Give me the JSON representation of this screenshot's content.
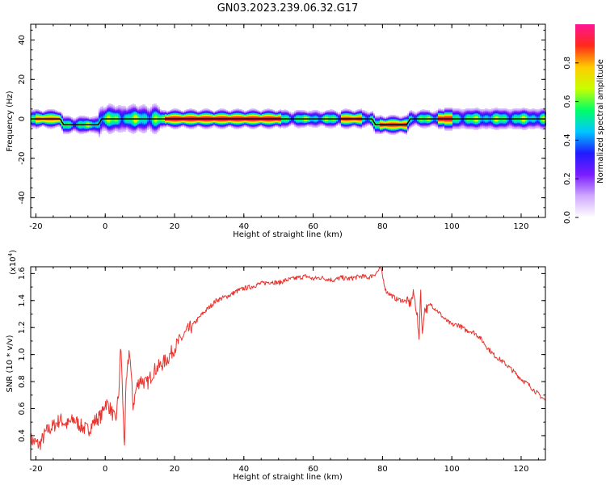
{
  "title": "GN03.2023.239.06.32.G17",
  "colors": {
    "snr_line": "#e8342f",
    "line_color": "#000000",
    "colormap": [
      "#ffffff",
      "#cfa8ff",
      "#7a1cff",
      "#1f1cff",
      "#00c8ff",
      "#00ff66",
      "#c8ff00",
      "#ffcc00",
      "#ff2a1a",
      "#ff1493"
    ]
  },
  "chart_data": [
    {
      "type": "heatmap",
      "xlabel": "Height of straight line (km)",
      "ylabel": "Frequency (Hz)",
      "xlim": [
        -21.5,
        127
      ],
      "ylim": [
        -50,
        48
      ],
      "xticks": [
        -20,
        0,
        20,
        40,
        60,
        80,
        100,
        120
      ],
      "yticks": [
        -40,
        -20,
        0,
        20,
        40
      ],
      "ridge": {
        "x": [
          -21.5,
          -13,
          -12,
          -2,
          -1,
          17,
          18,
          77,
          78,
          87,
          88,
          127
        ],
        "freq": [
          0,
          0,
          -3,
          -3,
          0,
          0,
          0,
          0,
          -3,
          -3,
          0,
          0
        ]
      },
      "colorbar": {
        "label": "Normalized spectral amplitude",
        "range": [
          0.0,
          1.0
        ],
        "ticks": [
          "0.0",
          "0.2",
          "0.4",
          "0.6",
          "0.8"
        ]
      }
    },
    {
      "type": "line",
      "xlabel": "Height of straight line (km)",
      "ylabel": "SNR (10 * v/v)",
      "scale_label": "(x10",
      "scale_exp": "4",
      "scale_close": ")",
      "xlim": [
        -21.5,
        127
      ],
      "ylim": [
        0.22,
        1.65
      ],
      "xticks": [
        -20,
        0,
        20,
        40,
        60,
        80,
        100,
        120
      ],
      "yticks": [
        "0.4",
        "0.6",
        "0.8",
        "1.0",
        "1.2",
        "1.4",
        "1.6"
      ],
      "series": [
        {
          "x": [
            -21.5,
            -19,
            -17,
            -15,
            -13,
            -11,
            -9,
            -7,
            -5,
            -3,
            -1,
            0,
            1,
            2,
            3,
            4,
            4.5,
            5,
            5.5,
            6,
            7,
            8,
            9,
            10,
            12,
            14,
            16,
            18,
            20,
            22,
            24,
            26,
            28,
            30,
            32,
            34,
            36,
            38,
            40,
            42,
            44,
            46,
            48,
            50,
            52,
            54,
            56,
            58,
            60,
            62,
            64,
            66,
            68,
            70,
            72,
            74,
            76,
            78,
            79.5,
            80,
            81,
            82,
            84,
            86,
            88,
            89,
            90,
            90.5,
            91,
            91.5,
            92,
            94,
            96,
            98,
            100,
            102,
            104,
            106,
            108,
            110,
            112,
            114,
            116,
            118,
            120,
            122,
            124,
            127
          ],
          "y": [
            0.37,
            0.33,
            0.43,
            0.47,
            0.52,
            0.48,
            0.52,
            0.47,
            0.44,
            0.51,
            0.55,
            0.65,
            0.62,
            0.57,
            0.5,
            0.75,
            1.1,
            0.7,
            0.31,
            0.75,
            1.05,
            0.62,
            0.75,
            0.82,
            0.78,
            0.88,
            0.92,
            0.97,
            1.05,
            1.12,
            1.18,
            1.24,
            1.3,
            1.35,
            1.4,
            1.42,
            1.44,
            1.47,
            1.49,
            1.5,
            1.52,
            1.53,
            1.54,
            1.53,
            1.55,
            1.56,
            1.57,
            1.58,
            1.56,
            1.57,
            1.56,
            1.55,
            1.57,
            1.56,
            1.57,
            1.58,
            1.57,
            1.6,
            1.64,
            1.58,
            1.47,
            1.45,
            1.41,
            1.4,
            1.38,
            1.45,
            1.3,
            1.08,
            1.5,
            1.12,
            1.33,
            1.37,
            1.32,
            1.26,
            1.22,
            1.22,
            1.18,
            1.17,
            1.13,
            1.06,
            1.0,
            0.96,
            0.92,
            0.87,
            0.82,
            0.78,
            0.73,
            0.66
          ]
        }
      ]
    }
  ]
}
